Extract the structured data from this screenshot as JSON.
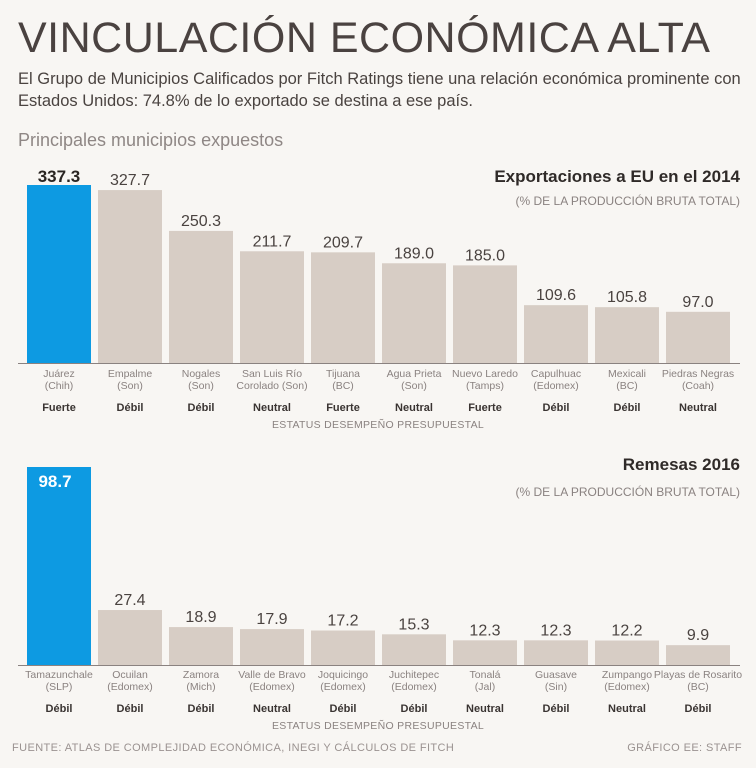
{
  "header": {
    "title": "VINCULACIÓN ECONÓMICA ALTA",
    "subtitle": "El Grupo de Municipios Calificados por Fitch Ratings tiene una relación económica prominente con Estados Unidos: 74.8% de lo exportado se destina a ese país.",
    "section_label": "Principales municipios expuestos"
  },
  "footer": {
    "source": "FUENTE: ATLAS DE COMPLEJIDAD ECONÓMICA, INEGI Y CÁLCULOS DE FITCH",
    "credit": "GRÁFICO EE: STAFF"
  },
  "colors": {
    "highlight": "#0d9ae2",
    "bar": "#d7cdc5",
    "axis": "#8a8280"
  },
  "chart_data": [
    {
      "type": "bar",
      "title": "Exportaciones a EU en el 2014",
      "subtitle": "(% DE LA PRODUCCIÓN BRUTA TOTAL)",
      "status_caption": "ESTATUS DESEMPEÑO PRESUPUESTAL",
      "ylim": [
        0,
        337.3
      ],
      "highlight_index": 0,
      "categories": [
        [
          "Juárez",
          "(Chih)"
        ],
        [
          "Empalme",
          "(Son)"
        ],
        [
          "Nogales",
          "(Son)"
        ],
        [
          "San Luis Río",
          "Corolado (Son)"
        ],
        [
          "Tijuana",
          "(BC)"
        ],
        [
          "Agua Prieta",
          "(Son)"
        ],
        [
          "Nuevo Laredo",
          "(Tamps)"
        ],
        [
          "Capulhuac",
          "(Edomex)"
        ],
        [
          "Mexicali",
          "(BC)"
        ],
        [
          "Piedras Negras",
          "(Coah)"
        ]
      ],
      "values": [
        337.3,
        327.7,
        250.3,
        211.7,
        209.7,
        189.0,
        185.0,
        109.6,
        105.8,
        97.0
      ],
      "value_labels": [
        "337.3",
        "327.7",
        "250.3",
        "211.7",
        "209.7",
        "189.0",
        "185.0",
        "109.6",
        "105.8",
        "97.0"
      ],
      "status": [
        "Fuerte",
        "Débil",
        "Débil",
        "Neutral",
        "Fuerte",
        "Neutral",
        "Fuerte",
        "Débil",
        "Débil",
        "Neutral"
      ]
    },
    {
      "type": "bar",
      "title": "Remesas 2016",
      "subtitle": "(% DE LA PRODUCCIÓN BRUTA TOTAL)",
      "status_caption": "ESTATUS DESEMPEÑO PRESUPUESTAL",
      "ylim": [
        0,
        98.7
      ],
      "highlight_index": 0,
      "categories": [
        [
          "Tamazunchale",
          "(SLP)"
        ],
        [
          "Ocuilan",
          "(Edomex)"
        ],
        [
          "Zamora",
          "(Mich)"
        ],
        [
          "Valle de Bravo",
          "(Edomex)"
        ],
        [
          "Joquicingo",
          "(Edomex)"
        ],
        [
          "Juchitepec",
          "(Edomex)"
        ],
        [
          "Tonalá",
          "(Jal)"
        ],
        [
          "Guasave",
          "(Sin)"
        ],
        [
          "Zumpango",
          "(Edomex)"
        ],
        [
          "Playas de Rosarito",
          "(BC)"
        ]
      ],
      "values": [
        98.7,
        27.4,
        18.9,
        17.9,
        17.2,
        15.3,
        12.3,
        12.3,
        12.2,
        9.9
      ],
      "value_labels": [
        "98.7",
        "27.4",
        "18.9",
        "17.9",
        "17.2",
        "15.3",
        "12.3",
        "12.3",
        "12.2",
        "9.9"
      ],
      "status": [
        "Débil",
        "Débil",
        "Débil",
        "Neutral",
        "Débil",
        "Débil",
        "Neutral",
        "Débil",
        "Neutral",
        "Débil"
      ]
    }
  ]
}
